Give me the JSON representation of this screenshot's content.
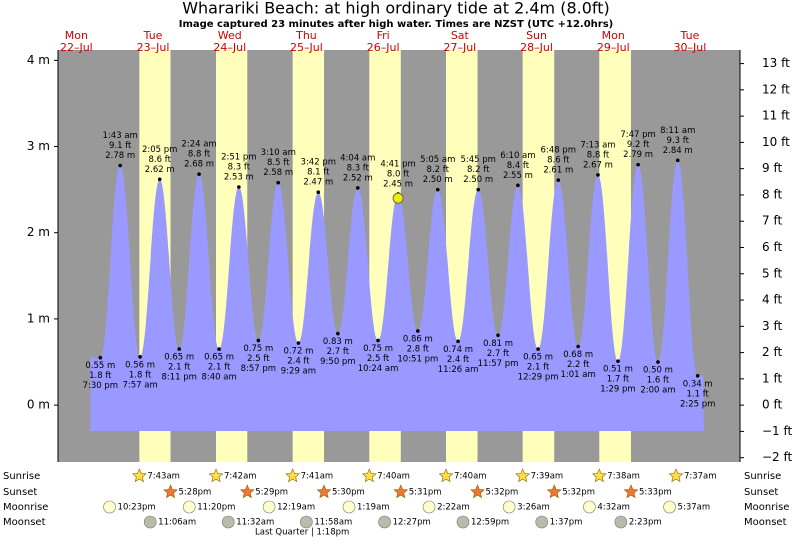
{
  "chart_data": {
    "type": "tide",
    "title": "Wharariki Beach: at high  ordinary tide at 2.4m (8.0ft)",
    "subtitle": "Image captured 23 minutes after high water. Times are NZST (UTC +12.0hrs)",
    "ylim": [
      -0.66,
      4.12
    ],
    "yticks": [
      {
        "value": 4,
        "label": "4 m"
      },
      {
        "value": 3,
        "label": "3 m"
      },
      {
        "value": 2,
        "label": "2 m"
      },
      {
        "value": 1,
        "label": "1 m"
      },
      {
        "value": 0,
        "label": "0 m"
      }
    ],
    "y2lim": [
      -2.165,
      13.517
    ],
    "y2ticks": [
      {
        "value": 13,
        "label": "13 ft"
      },
      {
        "value": 12,
        "label": "12 ft"
      },
      {
        "value": 11,
        "label": "11 ft"
      },
      {
        "value": 10,
        "label": "10 ft"
      },
      {
        "value": 9,
        "label": "9 ft"
      },
      {
        "value": 8,
        "label": "8 ft"
      },
      {
        "value": 7,
        "label": "7 ft"
      },
      {
        "value": 6,
        "label": "6 ft"
      },
      {
        "value": 5,
        "label": "5 ft"
      },
      {
        "value": 4,
        "label": "4 ft"
      },
      {
        "value": 3,
        "label": "3 ft"
      },
      {
        "value": 2,
        "label": "2 ft"
      },
      {
        "value": 1,
        "label": "1 ft"
      },
      {
        "value": 0,
        "label": "0 ft"
      },
      {
        "value": -1,
        "label": "−1 ft"
      },
      {
        "value": -2,
        "label": "−2 ft"
      }
    ],
    "now_level_m": 2.4,
    "rows": {
      "sunrise": "Sunrise",
      "sunset": "Sunset",
      "moonrise": "Moonrise",
      "moonset": "Moonset"
    },
    "moon_phase": "Last Quarter | 1:18pm",
    "days": [
      {
        "name": "Mon",
        "date": "22–Jul",
        "sunrise": null,
        "sunset": null,
        "moonrise": "10:23pm",
        "moonset": null,
        "tides": [
          {
            "time": "7:30 pm",
            "m": 0.55,
            "m_label": "0.55 m",
            "ft": "1.8 ft"
          }
        ]
      },
      {
        "name": "Tue",
        "date": "23–Jul",
        "sunrise": "7:43am",
        "sunset": "5:28pm",
        "moonrise": "11:20pm",
        "moonset": "11:06am",
        "tides": [
          {
            "time": "1:43 am",
            "m": 2.78,
            "m_label": "2.78 m",
            "ft": "9.1 ft"
          },
          {
            "time": "7:57 am",
            "m": 0.56,
            "m_label": "0.56 m",
            "ft": "1.8 ft"
          },
          {
            "time": "2:05 pm",
            "m": 2.62,
            "m_label": "2.62 m",
            "ft": "8.6 ft"
          },
          {
            "time": "8:11 pm",
            "m": 0.65,
            "m_label": "0.65 m",
            "ft": "2.1 ft"
          }
        ]
      },
      {
        "name": "Wed",
        "date": "24–Jul",
        "sunrise": "7:42am",
        "sunset": "5:29pm",
        "moonrise": null,
        "moonset": "11:32am",
        "tides": [
          {
            "time": "2:24 am",
            "m": 2.68,
            "m_label": "2.68 m",
            "ft": "8.8 ft"
          },
          {
            "time": "8:40 am",
            "m": 0.65,
            "m_label": "0.65 m",
            "ft": "2.1 ft"
          },
          {
            "time": "2:51 pm",
            "m": 2.53,
            "m_label": "2.53 m",
            "ft": "8.3 ft"
          },
          {
            "time": "8:57 pm",
            "m": 0.75,
            "m_label": "0.75 m",
            "ft": "2.5 ft"
          }
        ]
      },
      {
        "name": "Thu",
        "date": "25–Jul",
        "sunrise": "7:41am",
        "sunset": "5:30pm",
        "moonrise": "12:19am",
        "moonset": "11:58am",
        "tides": [
          {
            "time": "3:10 am",
            "m": 2.58,
            "m_label": "2.58 m",
            "ft": "8.5 ft"
          },
          {
            "time": "9:29 am",
            "m": 0.72,
            "m_label": "0.72 m",
            "ft": "2.4 ft"
          },
          {
            "time": "3:42 pm",
            "m": 2.47,
            "m_label": "2.47 m",
            "ft": "8.1 ft"
          },
          {
            "time": "9:50 pm",
            "m": 0.83,
            "m_label": "0.83 m",
            "ft": "2.7 ft"
          }
        ]
      },
      {
        "name": "Fri",
        "date": "26–Jul",
        "sunrise": "7:40am",
        "sunset": "5:31pm",
        "moonrise": "1:19am",
        "moonset": "12:27pm",
        "tides": [
          {
            "time": "4:04 am",
            "m": 2.52,
            "m_label": "2.52 m",
            "ft": "8.3 ft"
          },
          {
            "time": "10:24 am",
            "m": 0.75,
            "m_label": "0.75 m",
            "ft": "2.5 ft"
          },
          {
            "time": "4:41 pm",
            "m": 2.45,
            "m_label": "2.45 m",
            "ft": "8.0 ft"
          },
          {
            "time": "10:51 pm",
            "m": 0.86,
            "m_label": "0.86 m",
            "ft": "2.8 ft"
          }
        ]
      },
      {
        "name": "Sat",
        "date": "27–Jul",
        "sunrise": "7:40am",
        "sunset": "5:32pm",
        "moonrise": "2:22am",
        "moonset": "12:59pm",
        "tides": [
          {
            "time": "5:05 am",
            "m": 2.5,
            "m_label": "2.50 m",
            "ft": "8.2 ft"
          },
          {
            "time": "11:26 am",
            "m": 0.74,
            "m_label": "0.74 m",
            "ft": "2.4 ft"
          },
          {
            "time": "5:45 pm",
            "m": 2.5,
            "m_label": "2.50 m",
            "ft": "8.2 ft"
          },
          {
            "time": "11:57 pm",
            "m": 0.81,
            "m_label": "0.81 m",
            "ft": "2.7 ft"
          }
        ]
      },
      {
        "name": "Sun",
        "date": "28–Jul",
        "sunrise": "7:39am",
        "sunset": "5:32pm",
        "moonrise": "3:26am",
        "moonset": "1:37pm",
        "tides": [
          {
            "time": "6:10 am",
            "m": 2.55,
            "m_label": "2.55 m",
            "ft": "8.4 ft"
          },
          {
            "time": "12:29 pm",
            "m": 0.65,
            "m_label": "0.65 m",
            "ft": "2.1 ft"
          },
          {
            "time": "6:48 pm",
            "m": 2.61,
            "m_label": "2.61 m",
            "ft": "8.6 ft"
          }
        ]
      },
      {
        "name": "Mon",
        "date": "29–Jul",
        "sunrise": "7:38am",
        "sunset": "5:33pm",
        "moonrise": "4:32am",
        "moonset": "2:23pm",
        "tides": [
          {
            "time": "1:01 am",
            "m": 0.68,
            "m_label": "0.68 m",
            "ft": "2.2 ft"
          },
          {
            "time": "7:13 am",
            "m": 2.67,
            "m_label": "2.67 m",
            "ft": "8.8 ft"
          },
          {
            "time": "1:29 pm",
            "m": 0.51,
            "m_label": "0.51 m",
            "ft": "1.7 ft"
          },
          {
            "time": "7:47 pm",
            "m": 2.79,
            "m_label": "2.79 m",
            "ft": "9.2 ft"
          }
        ]
      },
      {
        "name": "Tue",
        "date": "30–Jul",
        "sunrise": "7:37am",
        "sunset": null,
        "moonrise": "5:37am",
        "moonset": null,
        "tides": [
          {
            "time": "2:00 am",
            "m": 0.5,
            "m_label": "0.50 m",
            "ft": "1.6 ft"
          },
          {
            "time": "8:11 am",
            "m": 2.84,
            "m_label": "2.84 m",
            "ft": "9.3 ft"
          },
          {
            "time": "2:25 pm",
            "m": 0.34,
            "m_label": "0.34 m",
            "ft": "1.1 ft"
          }
        ]
      }
    ]
  }
}
